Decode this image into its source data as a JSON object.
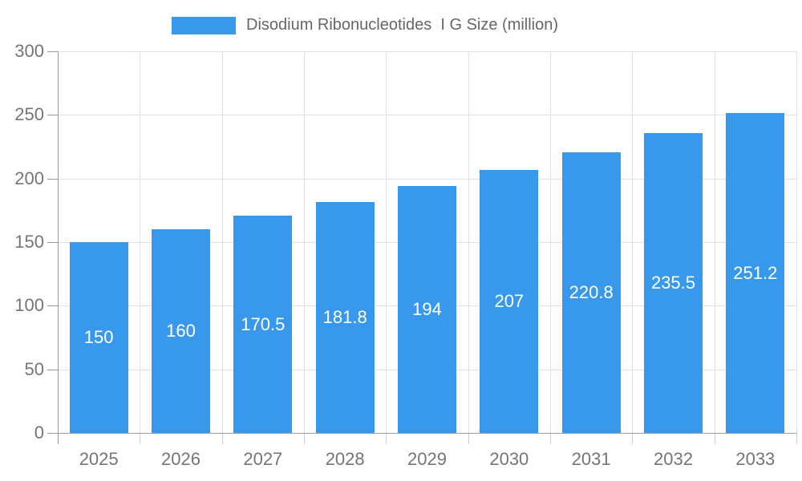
{
  "chart_data": {
    "type": "bar",
    "title": "Disodium Ribonucleotides  I G Size (million)",
    "legend": [
      "Disodium Ribonucleotides  I G Size (million)"
    ],
    "legend_position": "top",
    "categories": [
      "2025",
      "2026",
      "2027",
      "2028",
      "2029",
      "2030",
      "2031",
      "2032",
      "2033"
    ],
    "values": [
      150,
      160,
      170.5,
      181.8,
      194,
      207,
      220.8,
      235.5,
      251.2
    ],
    "value_labels": [
      "150",
      "160",
      "170.5",
      "181.8",
      "194",
      "207",
      "220.8",
      "235.5",
      "251.2"
    ],
    "xlabel": "",
    "ylabel": "",
    "ylim": [
      0,
      300
    ],
    "ytick_step": 50,
    "ytick_labels": [
      "0",
      "50",
      "100",
      "150",
      "200",
      "250",
      "300"
    ],
    "grid": true,
    "bar_color": "#3899ec",
    "value_label_color": "#ffffff",
    "axis_text_color": "#757575",
    "legend_text_color": "#666666",
    "gridline_color": "#e0e0e0",
    "axis_line_color": "#999999"
  }
}
